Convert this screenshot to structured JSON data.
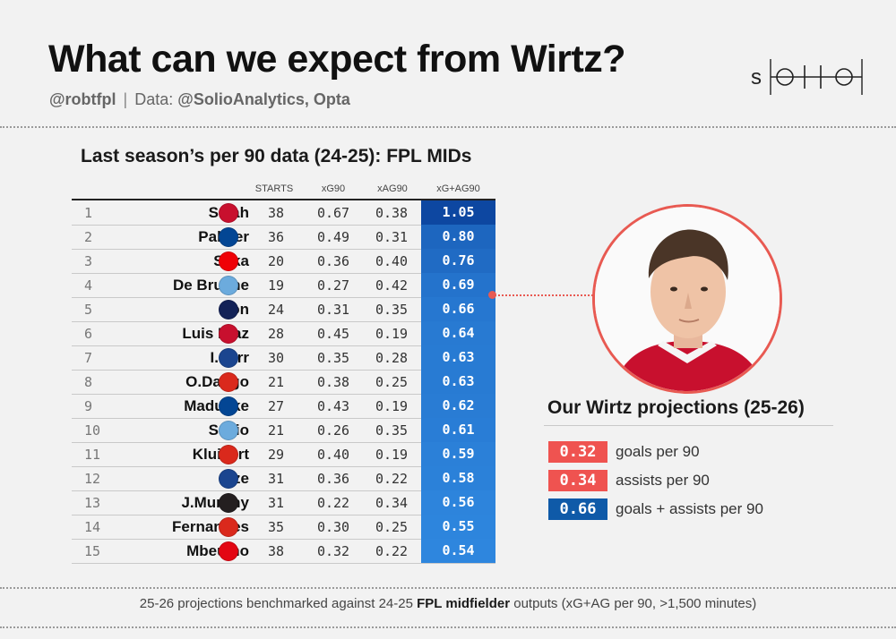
{
  "header": {
    "title": "What can we expect from Wirtz?",
    "handle": "@robtfpl",
    "separator": "|",
    "data_prefix": "Data:",
    "sources": "@SolioAnalytics, Opta"
  },
  "logo": {
    "text": "solio"
  },
  "table": {
    "title": "Last season’s per 90 data (24-25): FPL MIDs",
    "columns": [
      "STARTS",
      "xG90",
      "xAG90",
      "xG+AG90"
    ]
  },
  "chart_data": {
    "type": "table",
    "title": "Last season’s per 90 data (24-25): FPL MIDs",
    "columns": [
      "STARTS",
      "xG90",
      "xAG90",
      "xG+AG90"
    ],
    "rows": [
      {
        "rank": "1",
        "player": "Salah",
        "club": "Liverpool",
        "starts": "38",
        "xg90": "0.67",
        "xag90": "0.38",
        "xgag90": "1.05"
      },
      {
        "rank": "2",
        "player": "Palmer",
        "club": "Chelsea",
        "starts": "36",
        "xg90": "0.49",
        "xag90": "0.31",
        "xgag90": "0.80"
      },
      {
        "rank": "3",
        "player": "Saka",
        "club": "Arsenal",
        "starts": "20",
        "xg90": "0.36",
        "xag90": "0.40",
        "xgag90": "0.76"
      },
      {
        "rank": "4",
        "player": "De Bruyne",
        "club": "Man City",
        "starts": "19",
        "xg90": "0.27",
        "xag90": "0.42",
        "xgag90": "0.69"
      },
      {
        "rank": "5",
        "player": "Son",
        "club": "Tottenham",
        "starts": "24",
        "xg90": "0.31",
        "xag90": "0.35",
        "xgag90": "0.66"
      },
      {
        "rank": "6",
        "player": "Luis Díaz",
        "club": "Liverpool",
        "starts": "28",
        "xg90": "0.45",
        "xag90": "0.19",
        "xgag90": "0.64"
      },
      {
        "rank": "7",
        "player": "I.Sarr",
        "club": "Crystal Palace",
        "starts": "30",
        "xg90": "0.35",
        "xag90": "0.28",
        "xgag90": "0.63"
      },
      {
        "rank": "8",
        "player": "O.Dango",
        "club": "Bournemouth",
        "starts": "21",
        "xg90": "0.38",
        "xag90": "0.25",
        "xgag90": "0.63"
      },
      {
        "rank": "9",
        "player": "Madueke",
        "club": "Chelsea",
        "starts": "27",
        "xg90": "0.43",
        "xag90": "0.19",
        "xgag90": "0.62"
      },
      {
        "rank": "10",
        "player": "Sávio",
        "club": "Man City",
        "starts": "21",
        "xg90": "0.26",
        "xag90": "0.35",
        "xgag90": "0.61"
      },
      {
        "rank": "11",
        "player": "Kluivert",
        "club": "Bournemouth",
        "starts": "29",
        "xg90": "0.40",
        "xag90": "0.19",
        "xgag90": "0.59"
      },
      {
        "rank": "12",
        "player": "Eze",
        "club": "Crystal Palace",
        "starts": "31",
        "xg90": "0.36",
        "xag90": "0.22",
        "xgag90": "0.58"
      },
      {
        "rank": "13",
        "player": "J.Murphy",
        "club": "Newcastle",
        "starts": "31",
        "xg90": "0.22",
        "xag90": "0.34",
        "xgag90": "0.56"
      },
      {
        "rank": "14",
        "player": "Fernandes",
        "club": "Man Utd",
        "starts": "35",
        "xg90": "0.30",
        "xag90": "0.25",
        "xgag90": "0.55"
      },
      {
        "rank": "15",
        "player": "Mbeumo",
        "club": "Brentford",
        "starts": "38",
        "xg90": "0.32",
        "xag90": "0.22",
        "xgag90": "0.54"
      }
    ]
  },
  "club_colors": {
    "Liverpool": "#c8102e",
    "Chelsea": "#034694",
    "Arsenal": "#ef0107",
    "Man City": "#6cabdd",
    "Tottenham": "#132257",
    "Crystal Palace": "#1b458f",
    "Bournemouth": "#da291c",
    "Newcastle": "#241f20",
    "Man Utd": "#da291c",
    "Brentford": "#e30613"
  },
  "colors": {
    "accent_red": "#ef5350",
    "blue_dark": "#0d47a1",
    "blue_light": "#2e86de"
  },
  "projection": {
    "title": "Our Wirtz projections (25-26)",
    "items": [
      {
        "value": "0.32",
        "label": "goals per 90",
        "color": "#ef5350"
      },
      {
        "value": "0.34",
        "label": "assists per 90",
        "color": "#ef5350"
      },
      {
        "value": "0.66",
        "label": "goals + assists per 90",
        "color": "#0f5aa8"
      }
    ]
  },
  "footer": {
    "pre": "25-26 projections benchmarked against 24-25 ",
    "bold": "FPL midfielder",
    "post": " outputs (xG+AG per 90, >1,500 minutes)"
  }
}
